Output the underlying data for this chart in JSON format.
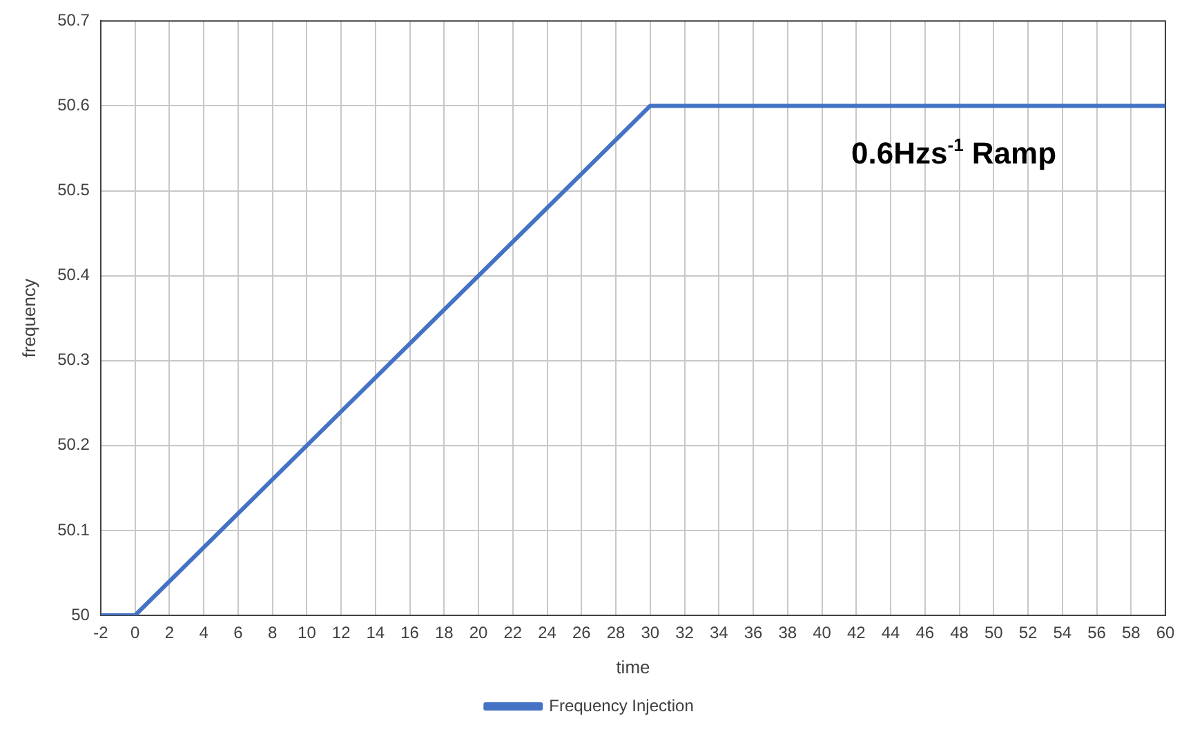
{
  "chart_data": {
    "type": "line",
    "xlabel": "time",
    "ylabel": "frequency",
    "x": [
      -2,
      0,
      30,
      60
    ],
    "series": [
      {
        "name": "Frequency Injection",
        "color": "#4472c4",
        "values": [
          50,
          50,
          50.6,
          50.6
        ]
      }
    ],
    "xlim": [
      -2,
      60
    ],
    "xticks": [
      -2,
      0,
      2,
      4,
      6,
      8,
      10,
      12,
      14,
      16,
      18,
      20,
      22,
      24,
      26,
      28,
      30,
      32,
      34,
      36,
      38,
      40,
      42,
      44,
      46,
      48,
      50,
      52,
      54,
      56,
      58,
      60
    ],
    "ylim": [
      50,
      50.7
    ],
    "yticks": [
      50,
      50.1,
      50.2,
      50.3,
      50.4,
      50.5,
      50.6,
      50.7
    ],
    "grid": true,
    "legend": "bottom",
    "marker": "none",
    "line_style": "solid",
    "annotations": [
      "0.6Hzs$^{-1}$ Ramp"
    ]
  }
}
